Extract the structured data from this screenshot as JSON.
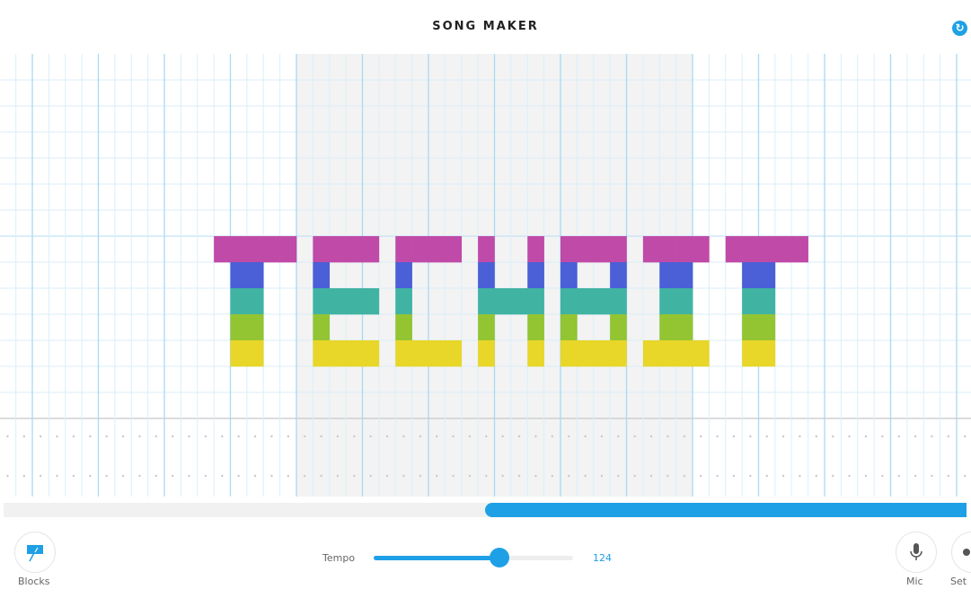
{
  "header": {
    "title": "SONG MAKER",
    "refresh_icon": "refresh-icon"
  },
  "grid": {
    "columns": 59,
    "melody_rows": 14,
    "shaded_bar_columns": [
      18,
      41
    ],
    "row_colors": {
      "7": "#c04aa8",
      "8": "#4b5fd6",
      "9": "#41b3a2",
      "10": "#93c432",
      "11": "#e8d629"
    },
    "notes": [
      [
        13,
        7
      ],
      [
        14,
        7
      ],
      [
        15,
        7
      ],
      [
        16,
        7
      ],
      [
        17,
        7
      ],
      [
        14,
        8
      ],
      [
        15,
        8
      ],
      [
        14,
        9
      ],
      [
        15,
        9
      ],
      [
        14,
        10
      ],
      [
        15,
        10
      ],
      [
        14,
        11
      ],
      [
        15,
        11
      ],
      [
        19,
        7
      ],
      [
        20,
        7
      ],
      [
        21,
        7
      ],
      [
        22,
        7
      ],
      [
        19,
        8
      ],
      [
        19,
        9
      ],
      [
        20,
        9
      ],
      [
        21,
        9
      ],
      [
        22,
        9
      ],
      [
        19,
        10
      ],
      [
        19,
        11
      ],
      [
        20,
        11
      ],
      [
        21,
        11
      ],
      [
        22,
        11
      ],
      [
        24,
        7
      ],
      [
        25,
        7
      ],
      [
        26,
        7
      ],
      [
        27,
        7
      ],
      [
        24,
        8
      ],
      [
        24,
        9
      ],
      [
        24,
        10
      ],
      [
        24,
        11
      ],
      [
        25,
        11
      ],
      [
        26,
        11
      ],
      [
        27,
        11
      ],
      [
        29,
        7
      ],
      [
        32,
        7
      ],
      [
        29,
        8
      ],
      [
        32,
        8
      ],
      [
        29,
        9
      ],
      [
        30,
        9
      ],
      [
        31,
        9
      ],
      [
        32,
        9
      ],
      [
        29,
        10
      ],
      [
        32,
        10
      ],
      [
        29,
        11
      ],
      [
        32,
        11
      ],
      [
        34,
        7
      ],
      [
        35,
        7
      ],
      [
        36,
        7
      ],
      [
        37,
        7
      ],
      [
        34,
        8
      ],
      [
        37,
        8
      ],
      [
        34,
        9
      ],
      [
        35,
        9
      ],
      [
        36,
        9
      ],
      [
        37,
        9
      ],
      [
        34,
        10
      ],
      [
        37,
        10
      ],
      [
        34,
        11
      ],
      [
        35,
        11
      ],
      [
        36,
        11
      ],
      [
        37,
        11
      ],
      [
        39,
        7
      ],
      [
        40,
        7
      ],
      [
        41,
        7
      ],
      [
        42,
        7
      ],
      [
        40,
        8
      ],
      [
        41,
        8
      ],
      [
        40,
        9
      ],
      [
        41,
        9
      ],
      [
        40,
        10
      ],
      [
        41,
        10
      ],
      [
        39,
        11
      ],
      [
        40,
        11
      ],
      [
        41,
        11
      ],
      [
        42,
        11
      ],
      [
        44,
        7
      ],
      [
        45,
        7
      ],
      [
        46,
        7
      ],
      [
        47,
        7
      ],
      [
        48,
        7
      ],
      [
        45,
        8
      ],
      [
        46,
        8
      ],
      [
        45,
        9
      ],
      [
        46,
        9
      ],
      [
        45,
        10
      ],
      [
        46,
        10
      ],
      [
        45,
        11
      ],
      [
        46,
        11
      ]
    ]
  },
  "scrollbar": {
    "position_fraction": 0.5
  },
  "footer": {
    "blocks_label": "Blocks",
    "tempo_label": "Tempo",
    "tempo_value": "124",
    "tempo_fraction": 0.63,
    "mic_label": "Mic",
    "settings_label": "Set"
  },
  "accent_color": "#1ea0e6"
}
